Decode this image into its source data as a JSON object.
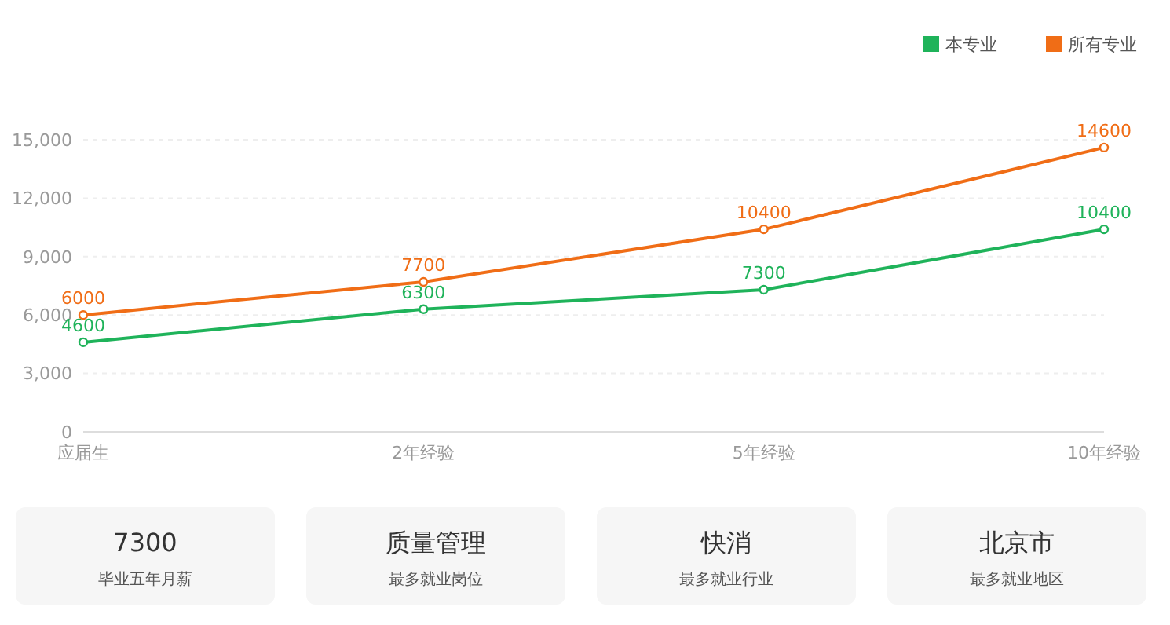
{
  "chart_data": [
    {
      "type": "line",
      "categories": [
        "应届生",
        "2年经验",
        "5年经验",
        "10年经验"
      ],
      "series": [
        {
          "name": "本专业",
          "color": "#1fb35a",
          "values": [
            4600,
            6300,
            7300,
            10400
          ]
        },
        {
          "name": "所有专业",
          "color": "#f06d16",
          "values": [
            6000,
            7700,
            10400,
            14600
          ]
        }
      ],
      "ylim": [
        0,
        15000
      ],
      "yticks": [
        0,
        {
          "value": 3000,
          "label": "3,000"
        },
        {
          "value": 6000,
          "label": "6,000"
        },
        {
          "value": 9000,
          "label": "9,000"
        },
        {
          "value": 12000,
          "label": "12,000"
        },
        {
          "value": 15000,
          "label": "15,000"
        }
      ],
      "grid": "y",
      "legend": "top right",
      "marker": "circle",
      "line_style": "solid",
      "data_labels": true
    },
    {
      "type": "other",
      "annotations": [
        "7300",
        "毕业五年月薪",
        "质量管理",
        "最多就业岗位",
        "快消",
        "最多就业行业",
        "北京市",
        "最多就业地区"
      ]
    }
  ]
}
